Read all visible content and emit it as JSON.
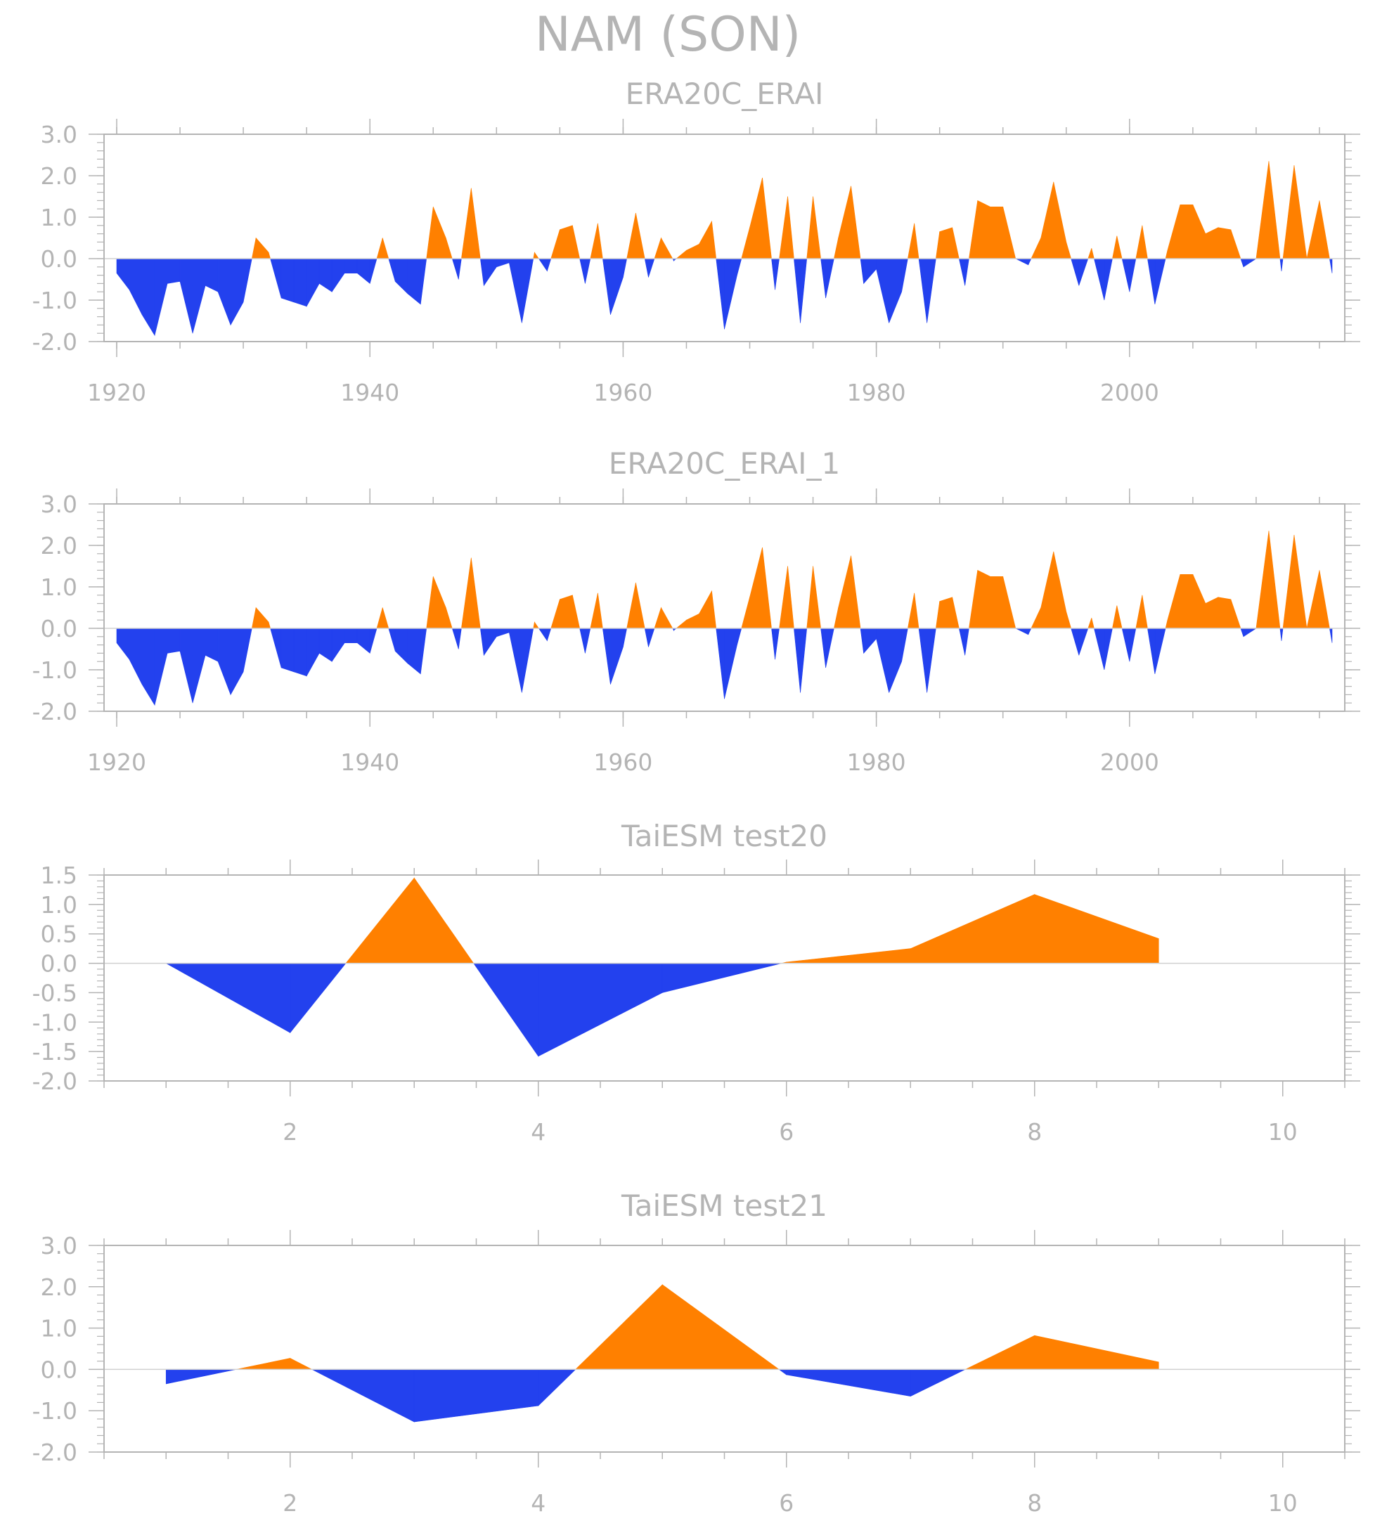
{
  "figure_title": "NAM (SON)",
  "colors": {
    "positive": "#ff8000",
    "negative": "#2341ee",
    "axis": "#b4b4b4",
    "zero_line": "#d0d0d0"
  },
  "chart_data": [
    {
      "type": "area",
      "title": "ERA20C_ERAI",
      "xlabel": "",
      "ylabel": "",
      "xlim": [
        1919,
        2017
      ],
      "ylim": [
        -2.0,
        3.0
      ],
      "x_ticks": [
        1920,
        1940,
        1960,
        1980,
        2000
      ],
      "x_tick_labels": [
        "1920",
        "1940",
        "1960",
        "1980",
        "2000"
      ],
      "y_ticks": [
        -2.0,
        -1.0,
        0.0,
        1.0,
        2.0,
        3.0
      ],
      "y_tick_labels": [
        "-2.0",
        "-1.0",
        "0.0",
        "1.0",
        "2.0",
        "3.0"
      ],
      "x": [
        1920,
        1921,
        1922,
        1923,
        1924,
        1925,
        1926,
        1927,
        1928,
        1929,
        1930,
        1931,
        1932,
        1933,
        1934,
        1935,
        1936,
        1937,
        1938,
        1939,
        1940,
        1941,
        1942,
        1943,
        1944,
        1945,
        1946,
        1947,
        1948,
        1949,
        1950,
        1951,
        1952,
        1953,
        1954,
        1955,
        1956,
        1957,
        1958,
        1959,
        1960,
        1961,
        1962,
        1963,
        1964,
        1965,
        1966,
        1967,
        1968,
        1969,
        1970,
        1971,
        1972,
        1973,
        1974,
        1975,
        1976,
        1977,
        1978,
        1979,
        1980,
        1981,
        1982,
        1983,
        1984,
        1985,
        1986,
        1987,
        1988,
        1989,
        1990,
        1991,
        1992,
        1993,
        1994,
        1995,
        1996,
        1997,
        1998,
        1999,
        2000,
        2001,
        2002,
        2003,
        2004,
        2005,
        2006,
        2007,
        2008,
        2009,
        2010,
        2011,
        2012,
        2013,
        2014,
        2015,
        2016
      ],
      "values": [
        -0.35,
        -0.75,
        -1.35,
        -1.85,
        -0.6,
        -0.55,
        -1.8,
        -0.65,
        -0.8,
        -1.6,
        -1.05,
        0.5,
        0.15,
        -0.95,
        -1.05,
        -1.15,
        -0.6,
        -0.8,
        -0.35,
        -0.35,
        -0.6,
        0.5,
        -0.55,
        -0.85,
        -1.1,
        1.25,
        0.5,
        -0.5,
        1.7,
        -0.65,
        -0.2,
        -0.1,
        -1.55,
        0.15,
        -0.3,
        0.7,
        0.8,
        -0.6,
        0.85,
        -1.35,
        -0.45,
        1.1,
        -0.45,
        0.5,
        -0.05,
        0.2,
        0.35,
        0.9,
        -1.7,
        -0.4,
        0.75,
        1.95,
        -0.75,
        1.5,
        -1.55,
        1.5,
        -0.95,
        0.5,
        1.75,
        -0.6,
        -0.25,
        -1.55,
        -0.8,
        0.85,
        -1.55,
        0.65,
        0.75,
        -0.65,
        1.4,
        1.25,
        1.25,
        0,
        -0.15,
        0.5,
        1.85,
        0.4,
        -0.65,
        0.25,
        -1.0,
        0.55,
        -0.8,
        0.8,
        -1.1,
        0.2,
        1.3,
        1.3,
        0.6,
        0.75,
        0.7,
        -0.2,
        0,
        2.35,
        -0.3,
        2.25,
        0,
        1.4,
        -0.35
      ]
    },
    {
      "type": "area",
      "title": "ERA20C_ERAI_1",
      "xlabel": "",
      "ylabel": "",
      "xlim": [
        1919,
        2017
      ],
      "ylim": [
        -2.0,
        3.0
      ],
      "x_ticks": [
        1920,
        1940,
        1960,
        1980,
        2000
      ],
      "x_tick_labels": [
        "1920",
        "1940",
        "1960",
        "1980",
        "2000"
      ],
      "y_ticks": [
        -2.0,
        -1.0,
        0.0,
        1.0,
        2.0,
        3.0
      ],
      "y_tick_labels": [
        "-2.0",
        "-1.0",
        "0.0",
        "1.0",
        "2.0",
        "3.0"
      ],
      "x": [
        1920,
        1921,
        1922,
        1923,
        1924,
        1925,
        1926,
        1927,
        1928,
        1929,
        1930,
        1931,
        1932,
        1933,
        1934,
        1935,
        1936,
        1937,
        1938,
        1939,
        1940,
        1941,
        1942,
        1943,
        1944,
        1945,
        1946,
        1947,
        1948,
        1949,
        1950,
        1951,
        1952,
        1953,
        1954,
        1955,
        1956,
        1957,
        1958,
        1959,
        1960,
        1961,
        1962,
        1963,
        1964,
        1965,
        1966,
        1967,
        1968,
        1969,
        1970,
        1971,
        1972,
        1973,
        1974,
        1975,
        1976,
        1977,
        1978,
        1979,
        1980,
        1981,
        1982,
        1983,
        1984,
        1985,
        1986,
        1987,
        1988,
        1989,
        1990,
        1991,
        1992,
        1993,
        1994,
        1995,
        1996,
        1997,
        1998,
        1999,
        2000,
        2001,
        2002,
        2003,
        2004,
        2005,
        2006,
        2007,
        2008,
        2009,
        2010,
        2011,
        2012,
        2013,
        2014,
        2015,
        2016
      ],
      "values": [
        -0.35,
        -0.75,
        -1.35,
        -1.85,
        -0.6,
        -0.55,
        -1.8,
        -0.65,
        -0.8,
        -1.6,
        -1.05,
        0.5,
        0.15,
        -0.95,
        -1.05,
        -1.15,
        -0.6,
        -0.8,
        -0.35,
        -0.35,
        -0.6,
        0.5,
        -0.55,
        -0.85,
        -1.1,
        1.25,
        0.5,
        -0.5,
        1.7,
        -0.65,
        -0.2,
        -0.1,
        -1.55,
        0.15,
        -0.3,
        0.7,
        0.8,
        -0.6,
        0.85,
        -1.35,
        -0.45,
        1.1,
        -0.45,
        0.5,
        -0.05,
        0.2,
        0.35,
        0.9,
        -1.7,
        -0.4,
        0.75,
        1.95,
        -0.75,
        1.5,
        -1.55,
        1.5,
        -0.95,
        0.5,
        1.75,
        -0.6,
        -0.25,
        -1.55,
        -0.8,
        0.85,
        -1.55,
        0.65,
        0.75,
        -0.65,
        1.4,
        1.25,
        1.25,
        0,
        -0.15,
        0.5,
        1.85,
        0.4,
        -0.65,
        0.25,
        -1.0,
        0.55,
        -0.8,
        0.8,
        -1.1,
        0.2,
        1.3,
        1.3,
        0.6,
        0.75,
        0.7,
        -0.2,
        0,
        2.35,
        -0.3,
        2.25,
        0,
        1.4,
        -0.35
      ]
    },
    {
      "type": "area",
      "title": "TaiESM test20",
      "xlabel": "",
      "ylabel": "",
      "xlim": [
        0.5,
        10.5
      ],
      "ylim": [
        -2.0,
        1.5
      ],
      "x_ticks": [
        2,
        4,
        6,
        8,
        10
      ],
      "x_tick_labels": [
        "2",
        "4",
        "6",
        "8",
        "10"
      ],
      "y_ticks": [
        -2.0,
        -1.5,
        -1.0,
        -0.5,
        0.0,
        0.5,
        1.0,
        1.5
      ],
      "y_tick_labels": [
        "-2.0",
        "-1.5",
        "-1.0",
        "-0.5",
        "0.0",
        "0.5",
        "1.0",
        "1.5"
      ],
      "x": [
        1,
        2,
        3,
        4,
        5,
        6,
        7,
        8,
        9
      ],
      "values": [
        0,
        -1.18,
        1.45,
        -1.58,
        -0.5,
        0.02,
        0.25,
        1.17,
        0.42
      ]
    },
    {
      "type": "area",
      "title": "TaiESM test21",
      "xlabel": "",
      "ylabel": "",
      "xlim": [
        0.5,
        10.5
      ],
      "ylim": [
        -2.0,
        3.0
      ],
      "x_ticks": [
        2,
        4,
        6,
        8,
        10
      ],
      "x_tick_labels": [
        "2",
        "4",
        "6",
        "8",
        "10"
      ],
      "y_ticks": [
        -2.0,
        -1.0,
        0.0,
        1.0,
        2.0,
        3.0
      ],
      "y_tick_labels": [
        "-2.0",
        "-1.0",
        "0.0",
        "1.0",
        "2.0",
        "3.0"
      ],
      "x": [
        1,
        2,
        3,
        4,
        5,
        6,
        7,
        8,
        9
      ],
      "values": [
        -0.35,
        0.27,
        -1.27,
        -0.88,
        2.05,
        -0.13,
        -0.65,
        0.82,
        0.18
      ]
    }
  ]
}
